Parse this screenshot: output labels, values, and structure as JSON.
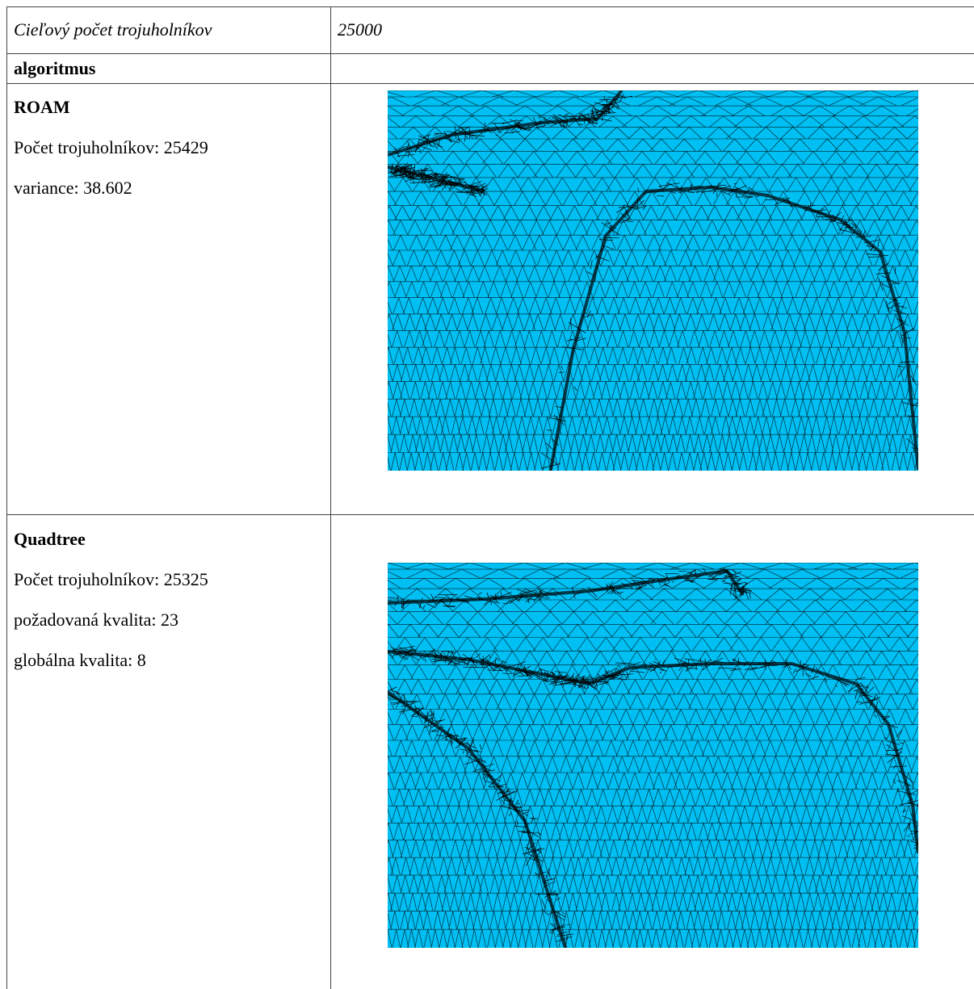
{
  "table": {
    "header": [
      "Cieľový počet trojuholníkov",
      "25000"
    ],
    "section_label": "algoritmus",
    "rows": [
      {
        "name": "ROAM",
        "lines": [
          "Počet trojuholníkov: 25429",
          "variance: 38.602"
        ]
      },
      {
        "name": "Quadtree",
        "lines": [
          "Počet trojuholníkov: 25325",
          "požadovaná kvalita: 23",
          "globálna kvalita: 8"
        ]
      }
    ]
  }
}
